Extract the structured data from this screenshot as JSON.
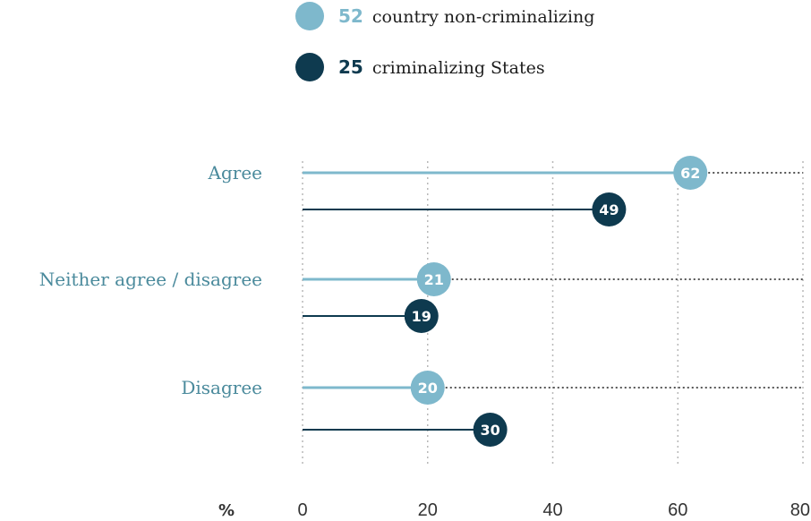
{
  "chart_data": {
    "type": "lollipop",
    "categories": [
      "Agree",
      "Neither agree / disagree",
      "Disagree"
    ],
    "series": [
      {
        "name": "country non-criminalizing",
        "count": "52",
        "color": "#7eb8cc",
        "values": [
          62,
          21,
          20
        ]
      },
      {
        "name": "criminalizing States",
        "count": "25",
        "color": "#0e3a4f",
        "values": [
          49,
          19,
          30
        ]
      }
    ],
    "xlim": [
      0,
      80
    ],
    "xticks": [
      "0",
      "20",
      "40",
      "60",
      "80"
    ],
    "unit_label": "%",
    "legend_position": "top",
    "grid": "dotted vertical"
  }
}
